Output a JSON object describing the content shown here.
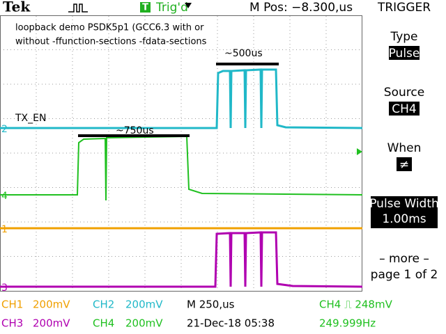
{
  "header": {
    "brand": "Tek",
    "trigger_icon": "T",
    "status": "Trig'd",
    "position": "M Pos: −8.300,us"
  },
  "menu": {
    "title": "TRIGGER",
    "items": [
      {
        "label": "Type",
        "value": "Pulse"
      },
      {
        "label": "Source",
        "value": "CH4"
      },
      {
        "label": "When",
        "value": "≠"
      },
      {
        "label": "Pulse Width",
        "value": "1.00ms"
      }
    ],
    "more": "– more –",
    "page": "page 1 of 2"
  },
  "annotations": {
    "note": [
      "loopback demo PSDK5p1 (GCC6.3 with or",
      "without -ffunction-sections -fdata-sections"
    ],
    "pulse_a": "~500us",
    "signal": "TX_EN",
    "pulse_b": "~750us"
  },
  "channel_markers": [
    "2",
    "4",
    "1",
    "3"
  ],
  "footer": {
    "rows": [
      [
        "CH1",
        "200mV",
        "CH2",
        "200mV",
        "M 250,us",
        "CH4 ⎍ 248mV"
      ],
      [
        "CH3",
        "200mV",
        "CH4",
        "200mV",
        "21-Dec-18 05:38",
        "249.999Hz"
      ]
    ]
  }
}
